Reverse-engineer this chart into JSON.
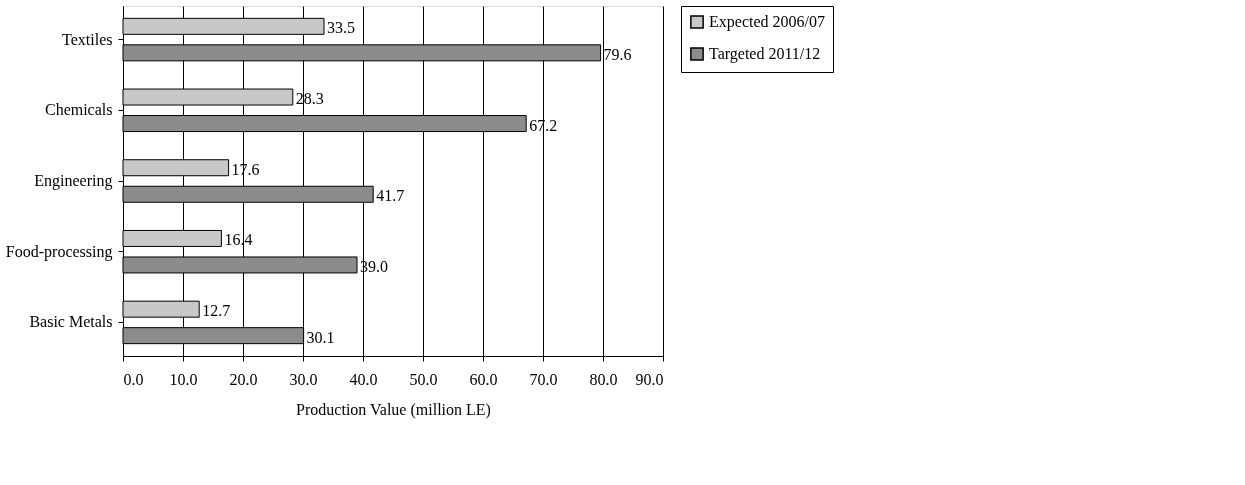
{
  "chart_data": {
    "type": "bar",
    "orientation": "horizontal",
    "xlabel": "Production Value (million LE)",
    "categories": [
      "Textiles",
      "Chemicals",
      "Engineering",
      "Food-processing",
      "Basic Metals"
    ],
    "series": [
      {
        "name": "Expected 2006/07",
        "color": "#c8c8c8",
        "values": [
          33.5,
          28.3,
          17.6,
          16.4,
          12.7
        ],
        "value_labels": [
          "33.5",
          "28.3",
          "17.6",
          "16.4",
          "12.7"
        ]
      },
      {
        "name": "Targeted 2011/12",
        "color": "#8c8c8c",
        "values": [
          79.6,
          67.2,
          41.7,
          39.0,
          30.1
        ],
        "value_labels": [
          "79.6",
          "67.2",
          "41.7",
          "39.0",
          "30.1"
        ]
      }
    ],
    "xlim": [
      0,
      90
    ],
    "xticks": [
      {
        "value": 0,
        "label": "0.0"
      },
      {
        "value": 10,
        "label": "10.0"
      },
      {
        "value": 20,
        "label": "20.0"
      },
      {
        "value": 30,
        "label": "30.0"
      },
      {
        "value": 40,
        "label": "40.0"
      },
      {
        "value": 50,
        "label": "50.0"
      },
      {
        "value": 60,
        "label": "60.0"
      },
      {
        "value": 70,
        "label": "70.0"
      },
      {
        "value": 80,
        "label": "80.0"
      },
      {
        "value": 90,
        "label": "90.0"
      }
    ],
    "grid": "x",
    "legend": "right"
  }
}
